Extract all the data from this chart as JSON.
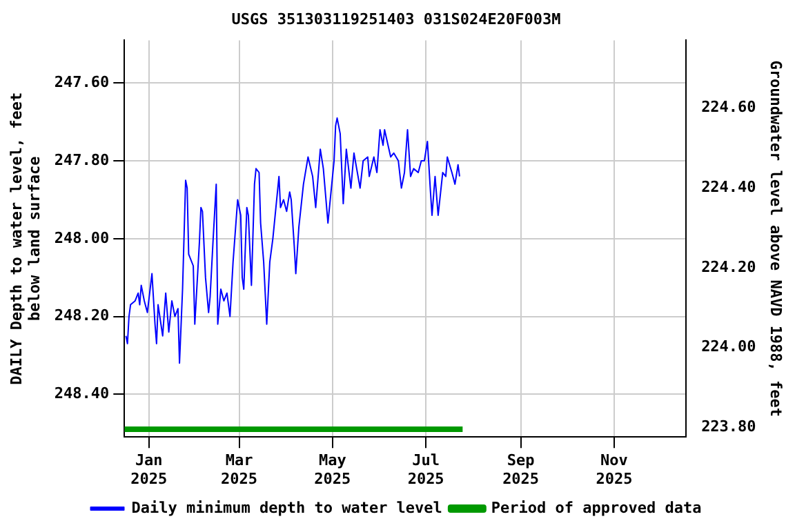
{
  "chart_data": {
    "type": "line",
    "title": "USGS 351303119251403 031S024E20F003M",
    "ylabel": "DAILY Depth to water level, feet below land surface",
    "y2label": "Groundwater level above NAVD 1988, feet",
    "xlim": [
      "2024-12-16",
      "2025-12-18"
    ],
    "xticks": [
      {
        "value": "2025-01-01",
        "label": "Jan 2025"
      },
      {
        "value": "2025-03-01",
        "label": "Mar 2025"
      },
      {
        "value": "2025-05-01",
        "label": "May 2025"
      },
      {
        "value": "2025-07-01",
        "label": "Jul 2025"
      },
      {
        "value": "2025-09-01",
        "label": "Sep 2025"
      },
      {
        "value": "2025-11-01",
        "label": "Nov 2025"
      }
    ],
    "ylim": [
      248.51,
      247.49
    ],
    "yticks": [
      {
        "value": 247.6,
        "label": "247.60"
      },
      {
        "value": 247.8,
        "label": "247.80"
      },
      {
        "value": 248.0,
        "label": "248.00"
      },
      {
        "value": 248.2,
        "label": "248.20"
      },
      {
        "value": 248.4,
        "label": "248.40"
      }
    ],
    "y2lim": [
      223.776,
      224.77
    ],
    "y2ticks": [
      {
        "value": 223.8,
        "label": "223.80"
      },
      {
        "value": 224.0,
        "label": "224.00"
      },
      {
        "value": 224.2,
        "label": "224.20"
      },
      {
        "value": 224.4,
        "label": "224.40"
      },
      {
        "value": 224.6,
        "label": "224.60"
      }
    ],
    "grid": true,
    "legend": "bottom",
    "marker": "none",
    "series": [
      {
        "name": "Daily minimum depth to water level",
        "color": "#0000ff",
        "x": [
          "2024-12-17",
          "2024-12-18",
          "2024-12-19",
          "2024-12-20",
          "2024-12-23",
          "2024-12-25",
          "2024-12-26",
          "2024-12-27",
          "2024-12-29",
          "2024-12-31",
          "2025-01-03",
          "2025-01-05",
          "2025-01-06",
          "2025-01-07",
          "2025-01-10",
          "2025-01-12",
          "2025-01-14",
          "2025-01-16",
          "2025-01-18",
          "2025-01-20",
          "2025-01-21",
          "2025-01-23",
          "2025-01-25",
          "2025-01-26",
          "2025-01-27",
          "2025-01-30",
          "2025-01-31",
          "2025-02-03",
          "2025-02-04",
          "2025-02-05",
          "2025-02-07",
          "2025-02-09",
          "2025-02-10",
          "2025-02-12",
          "2025-02-14",
          "2025-02-15",
          "2025-02-17",
          "2025-02-19",
          "2025-02-21",
          "2025-02-23",
          "2025-02-25",
          "2025-02-28",
          "2025-03-02",
          "2025-03-03",
          "2025-03-04",
          "2025-03-06",
          "2025-03-07",
          "2025-03-09",
          "2025-03-11",
          "2025-03-12",
          "2025-03-14",
          "2025-03-15",
          "2025-03-17",
          "2025-03-19",
          "2025-03-21",
          "2025-03-23",
          "2025-03-27",
          "2025-03-28",
          "2025-03-30",
          "2025-04-01",
          "2025-04-03",
          "2025-04-04",
          "2025-04-06",
          "2025-04-07",
          "2025-04-09",
          "2025-04-12",
          "2025-04-15",
          "2025-04-18",
          "2025-04-20",
          "2025-04-23",
          "2025-04-25",
          "2025-04-28",
          "2025-05-02",
          "2025-05-03",
          "2025-05-04",
          "2025-05-06",
          "2025-05-08",
          "2025-05-10",
          "2025-05-13",
          "2025-05-15",
          "2025-05-19",
          "2025-05-21",
          "2025-05-24",
          "2025-05-25",
          "2025-05-28",
          "2025-05-30",
          "2025-06-01",
          "2025-06-03",
          "2025-06-04",
          "2025-06-08",
          "2025-06-10",
          "2025-06-13",
          "2025-06-15",
          "2025-06-17",
          "2025-06-19",
          "2025-06-21",
          "2025-06-23",
          "2025-06-26",
          "2025-06-28",
          "2025-06-30",
          "2025-07-02",
          "2025-07-04",
          "2025-07-05",
          "2025-07-07",
          "2025-07-09",
          "2025-07-12",
          "2025-07-14",
          "2025-07-15",
          "2025-07-18",
          "2025-07-20",
          "2025-07-22",
          "2025-07-23"
        ],
        "values": [
          248.25,
          248.27,
          248.2,
          248.17,
          248.16,
          248.14,
          248.17,
          248.12,
          248.16,
          248.19,
          248.09,
          248.22,
          248.27,
          248.17,
          248.25,
          248.14,
          248.24,
          248.16,
          248.2,
          248.18,
          248.32,
          248.13,
          247.85,
          247.87,
          248.04,
          248.07,
          248.22,
          248.01,
          247.92,
          247.93,
          248.1,
          248.19,
          248.15,
          248.0,
          247.86,
          248.22,
          248.13,
          248.16,
          248.14,
          248.2,
          248.06,
          247.9,
          247.94,
          248.1,
          248.13,
          247.92,
          247.94,
          248.12,
          247.86,
          247.82,
          247.83,
          247.96,
          248.06,
          248.22,
          248.06,
          248.0,
          247.84,
          247.92,
          247.9,
          247.93,
          247.88,
          247.9,
          248.02,
          248.09,
          247.97,
          247.86,
          247.79,
          247.84,
          247.92,
          247.77,
          247.82,
          247.96,
          247.8,
          247.71,
          247.69,
          247.73,
          247.91,
          247.77,
          247.87,
          247.78,
          247.87,
          247.8,
          247.79,
          247.84,
          247.79,
          247.83,
          247.72,
          247.76,
          247.72,
          247.79,
          247.78,
          247.8,
          247.87,
          247.83,
          247.72,
          247.84,
          247.82,
          247.83,
          247.8,
          247.8,
          247.75,
          247.88,
          247.94,
          247.84,
          247.94,
          247.83,
          247.84,
          247.79,
          247.83,
          247.86,
          247.81,
          247.84
        ]
      },
      {
        "name": "Period of approved data",
        "color": "#009900",
        "x": [
          "2024-12-16",
          "2025-07-25"
        ],
        "values": [
          248.49,
          248.49
        ]
      }
    ]
  }
}
